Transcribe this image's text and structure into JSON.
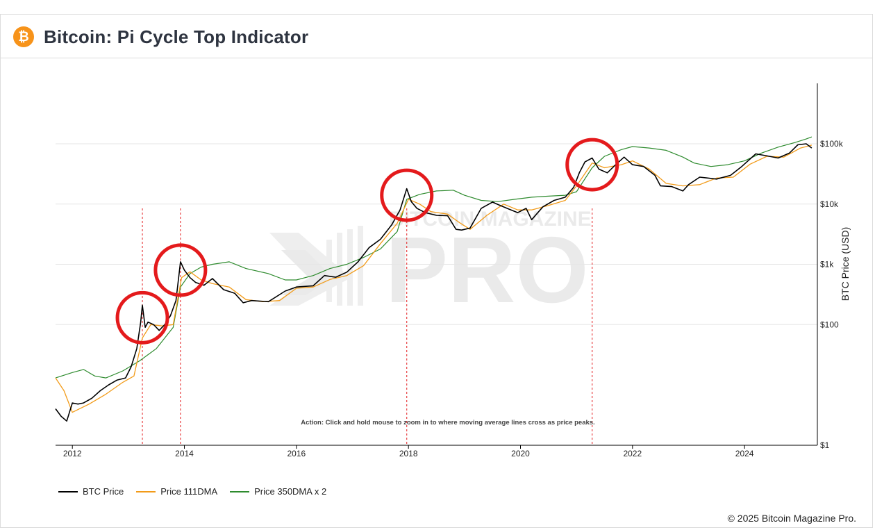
{
  "header": {
    "logo_symbol": "₿",
    "title": "Bitcoin: Pi Cycle Top Indicator"
  },
  "footer": {
    "copyright": "© 2025 Bitcoin Magazine Pro."
  },
  "colors": {
    "btc_price": "#000000",
    "dma111": "#f29b19",
    "dma350x2": "#2e8b2e",
    "marker_circle": "#e41a1c",
    "cross_line": "#e41a1c",
    "grid": "#e6e6e6"
  },
  "chart_data": {
    "type": "line",
    "title": "Bitcoin: Pi Cycle Top Indicator",
    "ylabel": "BTC Price (USD)",
    "yscale": "log",
    "ylim": [
      1,
      1000000
    ],
    "xlim": [
      2011.7,
      2025.3
    ],
    "x_ticks": [
      2012,
      2014,
      2016,
      2018,
      2020,
      2022,
      2024
    ],
    "x_tick_labels": [
      "2012",
      "2014",
      "2016",
      "2018",
      "2020",
      "2022",
      "2024"
    ],
    "y_ticks": [
      1,
      100,
      1000,
      10000,
      100000
    ],
    "y_tick_labels": [
      "$1",
      "$100",
      "$1k",
      "$10k",
      "$100k"
    ],
    "annotation": "Action: Click and hold mouse to zoom in to where moving average lines cross as price peaks.",
    "cross_events": [
      2013.25,
      2013.93,
      2017.97,
      2021.28
    ],
    "circled_peaks": [
      {
        "x": 2013.25,
        "y": 130
      },
      {
        "x": 2013.93,
        "y": 800
      },
      {
        "x": 2017.97,
        "y": 14000
      },
      {
        "x": 2021.28,
        "y": 45000
      }
    ],
    "series": [
      {
        "name": "BTC Price",
        "x": [
          2011.7,
          2011.8,
          2011.9,
          2012.0,
          2012.1,
          2012.2,
          2012.35,
          2012.5,
          2012.65,
          2012.8,
          2012.95,
          2013.05,
          2013.15,
          2013.22,
          2013.25,
          2013.3,
          2013.35,
          2013.45,
          2013.55,
          2013.65,
          2013.75,
          2013.85,
          2013.93,
          2014.0,
          2014.1,
          2014.2,
          2014.35,
          2014.5,
          2014.7,
          2014.9,
          2015.05,
          2015.2,
          2015.5,
          2015.8,
          2016.0,
          2016.3,
          2016.5,
          2016.7,
          2016.9,
          2017.1,
          2017.3,
          2017.5,
          2017.7,
          2017.85,
          2017.97,
          2018.05,
          2018.15,
          2018.3,
          2018.5,
          2018.7,
          2018.85,
          2018.95,
          2019.1,
          2019.3,
          2019.5,
          2019.6,
          2019.8,
          2019.95,
          2020.1,
          2020.2,
          2020.4,
          2020.6,
          2020.8,
          2020.95,
          2021.05,
          2021.15,
          2021.28,
          2021.4,
          2021.55,
          2021.7,
          2021.85,
          2022.0,
          2022.2,
          2022.4,
          2022.5,
          2022.7,
          2022.9,
          2023.0,
          2023.2,
          2023.5,
          2023.75,
          2023.95,
          2024.2,
          2024.4,
          2024.6,
          2024.8,
          2024.95,
          2025.1,
          2025.2
        ],
        "y": [
          4,
          3,
          2.5,
          5,
          4.8,
          5,
          6,
          8,
          10,
          12,
          13,
          20,
          40,
          110,
          210,
          90,
          110,
          100,
          80,
          100,
          140,
          250,
          1100,
          800,
          600,
          500,
          450,
          580,
          380,
          330,
          230,
          250,
          240,
          360,
          420,
          440,
          650,
          610,
          740,
          1100,
          1900,
          2600,
          4500,
          8000,
          18000,
          11000,
          8500,
          7200,
          6500,
          6400,
          3800,
          3700,
          4000,
          8500,
          10800,
          9800,
          8200,
          7200,
          8500,
          5500,
          9000,
          11500,
          13000,
          19000,
          33000,
          50000,
          58000,
          38000,
          33000,
          45000,
          60000,
          45000,
          42000,
          30000,
          20000,
          19500,
          16500,
          21000,
          28000,
          26000,
          30000,
          42000,
          68000,
          63000,
          58000,
          70000,
          96000,
          100000,
          85000
        ]
      },
      {
        "name": "Price 111DMA",
        "x": [
          2011.7,
          2011.85,
          2012.0,
          2012.3,
          2012.6,
          2012.9,
          2013.1,
          2013.25,
          2013.4,
          2013.6,
          2013.8,
          2013.95,
          2014.1,
          2014.3,
          2014.5,
          2014.8,
          2015.1,
          2015.4,
          2015.7,
          2016.0,
          2016.3,
          2016.6,
          2016.9,
          2017.2,
          2017.5,
          2017.8,
          2018.0,
          2018.2,
          2018.4,
          2018.7,
          2018.9,
          2019.1,
          2019.4,
          2019.7,
          2019.95,
          2020.2,
          2020.5,
          2020.8,
          2021.0,
          2021.28,
          2021.5,
          2021.8,
          2022.0,
          2022.3,
          2022.6,
          2022.9,
          2023.2,
          2023.5,
          2023.8,
          2024.1,
          2024.4,
          2024.7,
          2025.0,
          2025.2
        ],
        "y": [
          13,
          8,
          3.5,
          4.8,
          7,
          11,
          14,
          60,
          100,
          95,
          100,
          600,
          750,
          550,
          480,
          420,
          260,
          240,
          250,
          400,
          420,
          560,
          650,
          950,
          2200,
          4800,
          12000,
          10000,
          7500,
          6800,
          5000,
          3800,
          6500,
          10000,
          8000,
          8000,
          9500,
          11500,
          20000,
          48000,
          40000,
          45000,
          52000,
          38000,
          22000,
          20000,
          21000,
          27000,
          28000,
          46000,
          62000,
          60000,
          85000,
          95000
        ]
      },
      {
        "name": "Price 350DMA x 2",
        "x": [
          2011.7,
          2012.0,
          2012.2,
          2012.4,
          2012.6,
          2012.9,
          2013.2,
          2013.5,
          2013.8,
          2013.93,
          2014.1,
          2014.3,
          2014.5,
          2014.8,
          2015.1,
          2015.5,
          2015.8,
          2016.0,
          2016.3,
          2016.6,
          2016.9,
          2017.2,
          2017.5,
          2017.8,
          2017.97,
          2018.2,
          2018.5,
          2018.8,
          2019.0,
          2019.3,
          2019.6,
          2019.9,
          2020.2,
          2020.5,
          2020.8,
          2021.0,
          2021.28,
          2021.5,
          2021.8,
          2022.0,
          2022.3,
          2022.6,
          2022.9,
          2023.1,
          2023.4,
          2023.7,
          2024.0,
          2024.3,
          2024.6,
          2024.9,
          2025.1,
          2025.2
        ],
        "y": [
          13,
          16,
          18,
          14,
          13,
          17,
          25,
          40,
          90,
          420,
          700,
          900,
          1000,
          1100,
          850,
          700,
          550,
          550,
          650,
          850,
          1000,
          1300,
          1800,
          3500,
          12000,
          14500,
          16500,
          17000,
          14000,
          11500,
          11000,
          12000,
          13000,
          13500,
          14000,
          16000,
          40000,
          62000,
          80000,
          90000,
          85000,
          78000,
          60000,
          48000,
          42000,
          45000,
          52000,
          70000,
          88000,
          105000,
          120000,
          130000
        ]
      }
    ]
  }
}
